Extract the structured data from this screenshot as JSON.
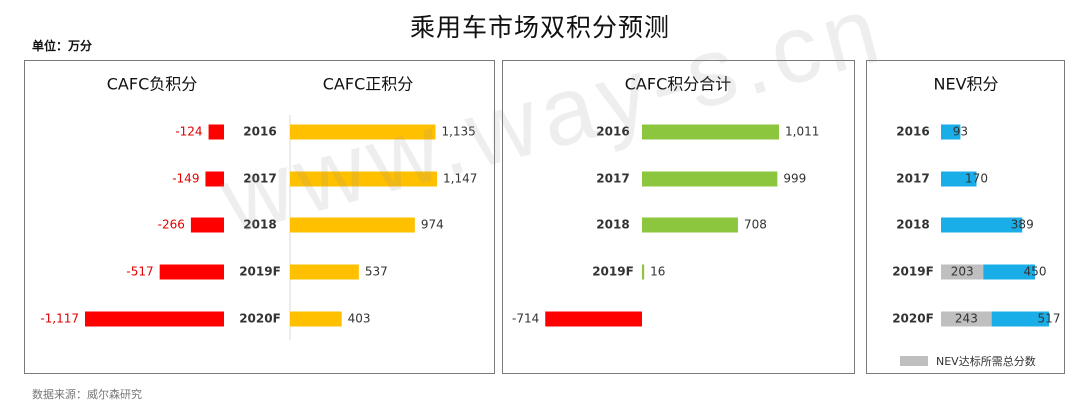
{
  "title": "乘用车市场双积分预测",
  "unit": "单位：万分",
  "source": "数据来源：威尔森研究",
  "watermark": "www.way-s.cn",
  "colors": {
    "negative": "#ff0000",
    "positive": "#ffc000",
    "total": "#8cc63f",
    "nev": "#1aaee8",
    "nev_required": "#bfbfbf",
    "label_negative": "#e00000"
  },
  "chart_data": [
    {
      "type": "bar",
      "title": "CAFC负积分",
      "orientation": "horizontal",
      "categories": [
        "2016",
        "2017",
        "2018",
        "2019F",
        "2020F"
      ],
      "values": [
        -124,
        -149,
        -266,
        -517,
        -1117
      ],
      "value_labels": [
        "-124",
        "-149",
        "-266",
        "-517",
        "-1,117"
      ]
    },
    {
      "type": "bar",
      "title": "CAFC正积分",
      "orientation": "horizontal",
      "categories": [
        "2016",
        "2017",
        "2018",
        "2019F",
        "2020F"
      ],
      "values": [
        1135,
        1147,
        974,
        537,
        403
      ],
      "value_labels": [
        "1,135",
        "1,147",
        "974",
        "537",
        "403"
      ]
    },
    {
      "type": "bar",
      "title": "CAFC积分合计",
      "orientation": "horizontal",
      "categories": [
        "2016",
        "2017",
        "2018",
        "2019F",
        "2020F"
      ],
      "values": [
        1011,
        999,
        708,
        16,
        -714
      ],
      "value_labels": [
        "1,011",
        "999",
        "708",
        "16",
        "-714"
      ]
    },
    {
      "type": "bar",
      "title": "NEV积分",
      "orientation": "horizontal",
      "categories": [
        "2016",
        "2017",
        "2018",
        "2019F",
        "2020F"
      ],
      "series": [
        {
          "name": "NEV达标所需总分数",
          "values": [
            0,
            0,
            0,
            203,
            243
          ],
          "value_labels": [
            "",
            "",
            "",
            "203",
            "243"
          ]
        },
        {
          "values": [
            93,
            170,
            389,
            450,
            517
          ],
          "value_labels": [
            "93",
            "170",
            "389",
            "450",
            "517"
          ]
        }
      ],
      "legend": "bottom"
    }
  ]
}
